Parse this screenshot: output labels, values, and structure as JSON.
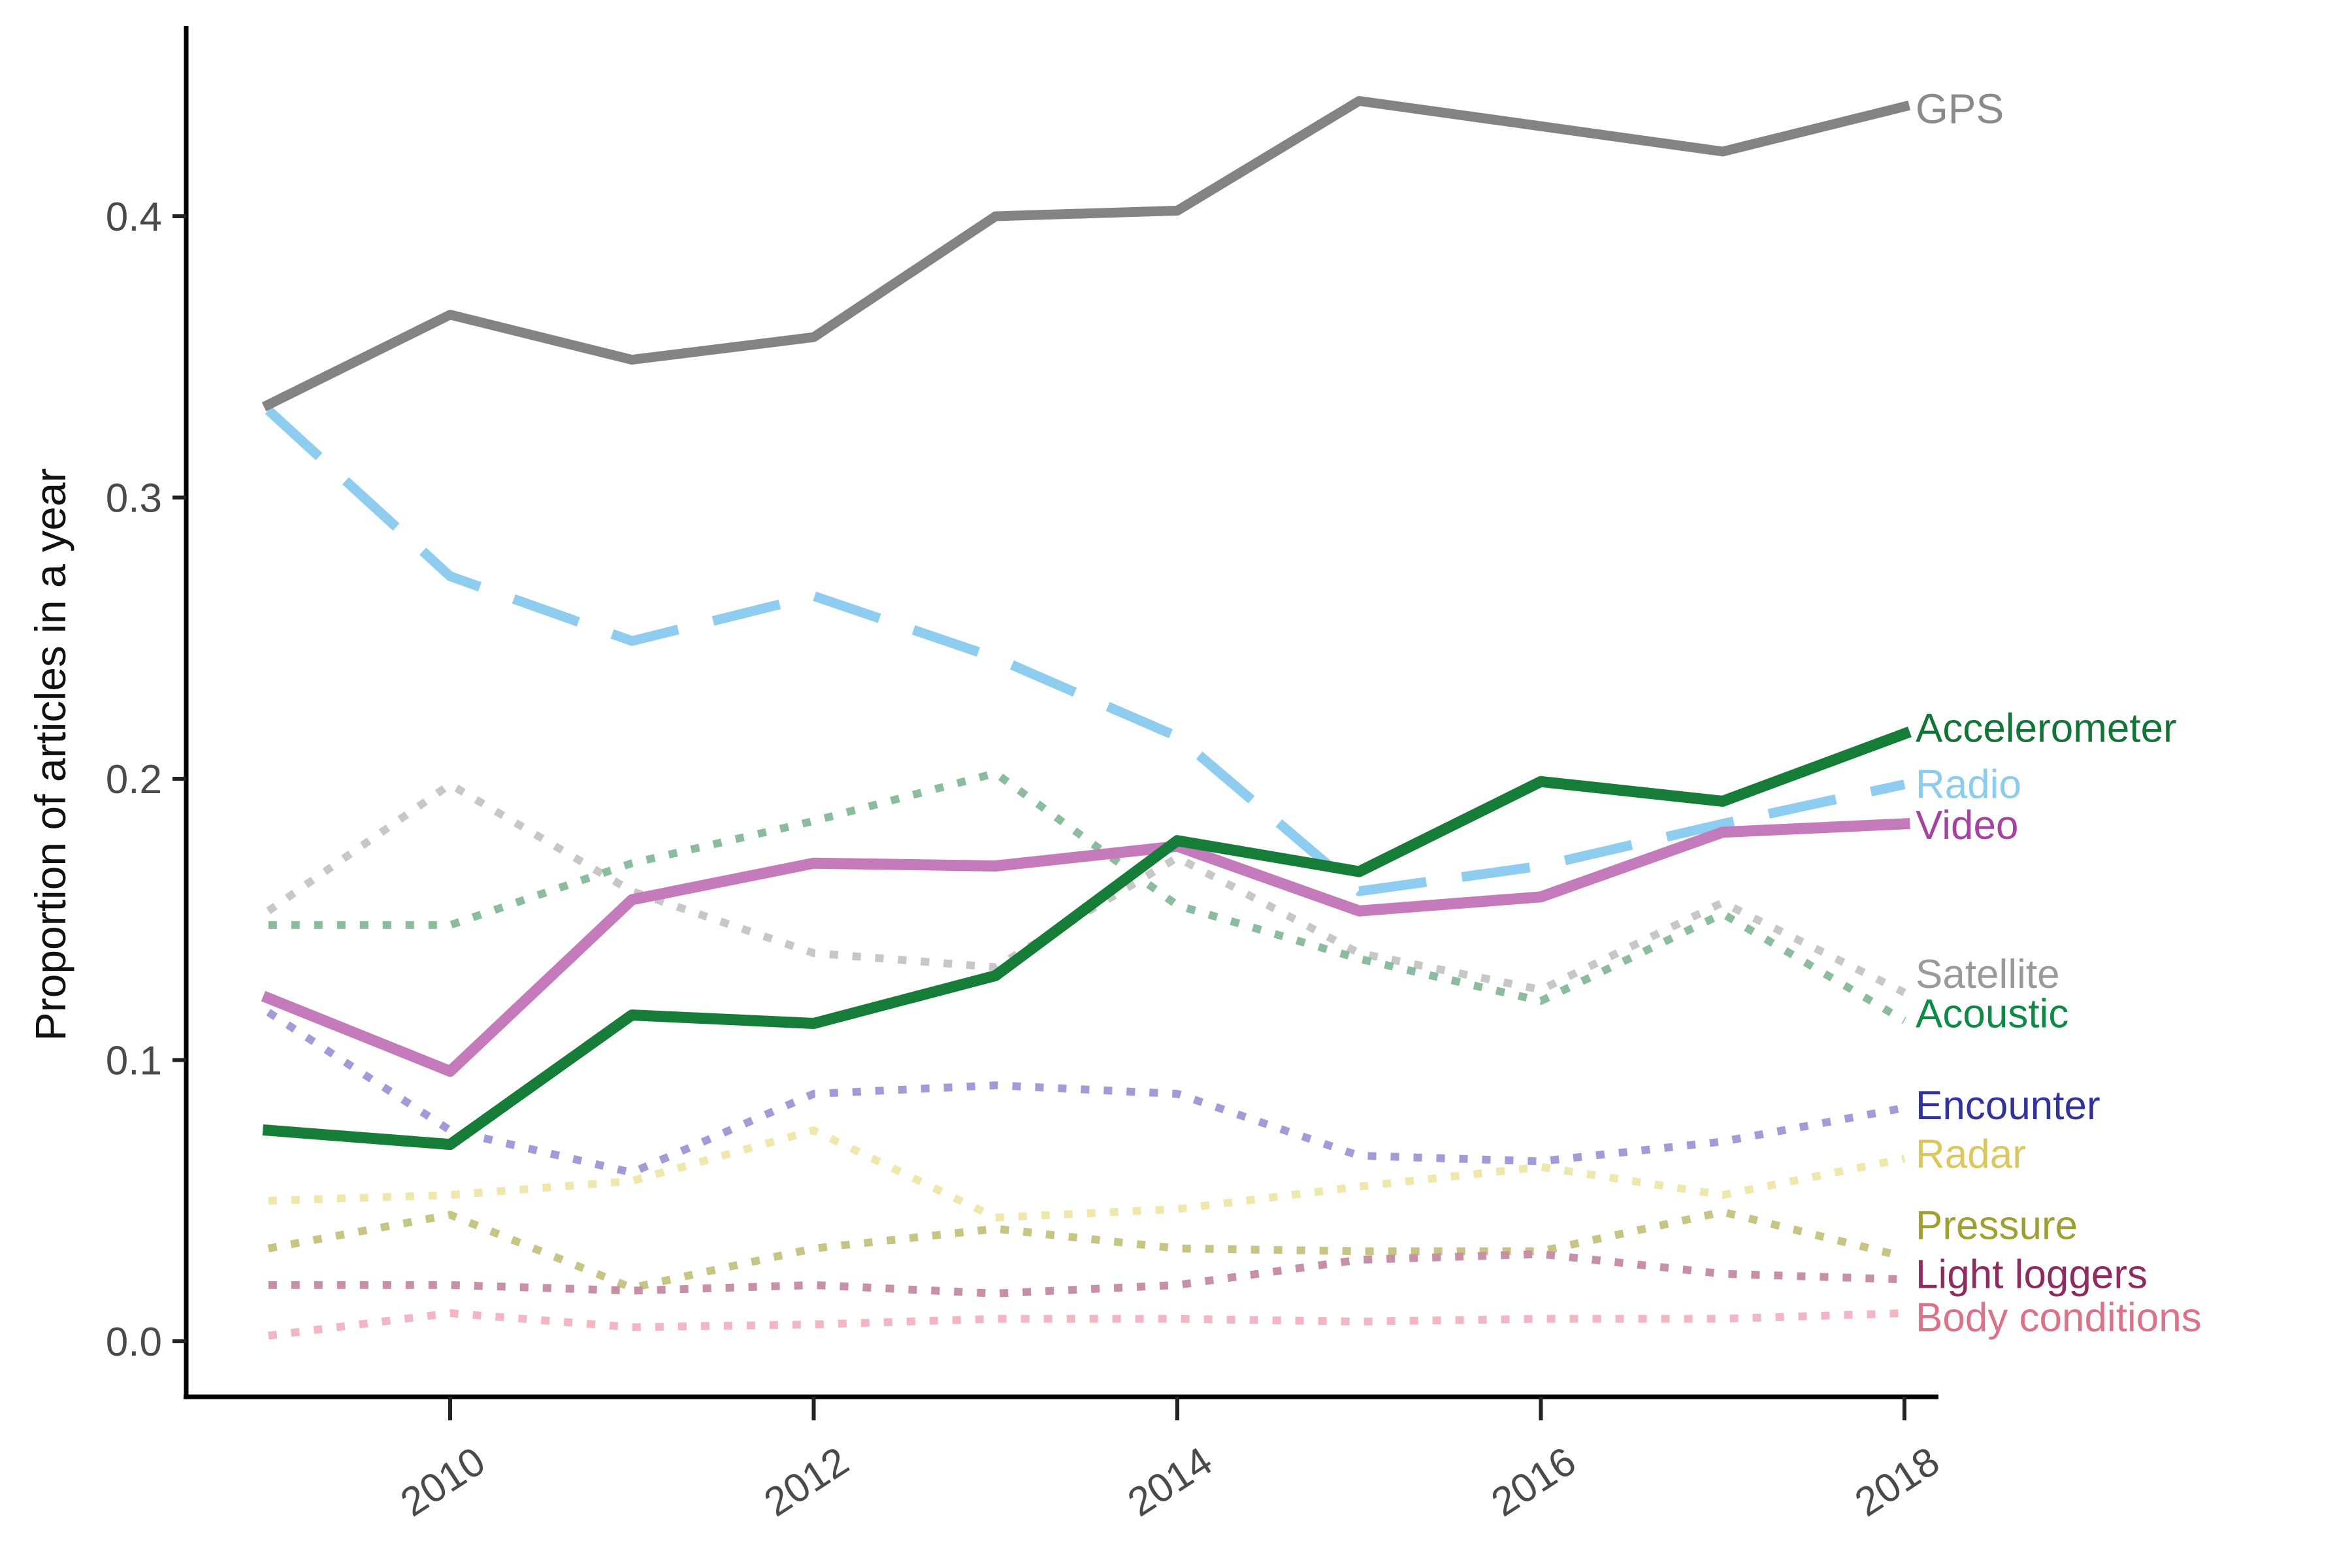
{
  "chart_data": {
    "type": "line",
    "title": "",
    "xlabel": "",
    "ylabel": "Proportion of articles in a year",
    "x": [
      2009,
      2010,
      2011,
      2012,
      2013,
      2014,
      2015,
      2016,
      2017,
      2018
    ],
    "x_tick_labels": [
      "2010",
      "2012",
      "2014",
      "2016",
      "2018"
    ],
    "x_tick_years": [
      2010,
      2012,
      2014,
      2016,
      2018
    ],
    "y_tick_labels": [
      "0.0",
      "0.1",
      "0.2",
      "0.3",
      "0.4"
    ],
    "y_tick_values": [
      0.0,
      0.1,
      0.2,
      0.3,
      0.4
    ],
    "ylim": [
      0.0,
      0.47
    ],
    "grid": false,
    "background": "#ffffff",
    "legend_position": "right-edge-direct-labels",
    "series": [
      {
        "id": "satellite",
        "name": "Satellite",
        "style": "dotted",
        "color": "#c7c7c7",
        "label_color": "#9a9a9a",
        "width": 12,
        "label_at": 0.1305,
        "values": [
          0.153,
          0.198,
          0.16,
          0.138,
          0.133,
          0.172,
          0.138,
          0.125,
          0.156,
          0.124
        ]
      },
      {
        "id": "acoustic",
        "name": "Acoustic",
        "style": "dotted",
        "color": "#8bbc9d",
        "label_color": "#0f8a44",
        "width": 12,
        "label_at": 0.1165,
        "values": [
          0.148,
          0.148,
          0.17,
          0.185,
          0.202,
          0.155,
          0.136,
          0.121,
          0.152,
          0.114
        ]
      },
      {
        "id": "encounter",
        "name": "Encounter",
        "style": "dotted",
        "color": "#a29bd8",
        "label_color": "#32329b",
        "width": 12,
        "label_at": 0.0838,
        "values": [
          0.117,
          0.075,
          0.06,
          0.088,
          0.091,
          0.088,
          0.066,
          0.064,
          0.071,
          0.083
        ]
      },
      {
        "id": "radar",
        "name": "Radar",
        "style": "dotted",
        "color": "#efe7ab",
        "label_color": "#dcc75f",
        "width": 12,
        "label_at": 0.0665,
        "values": [
          0.05,
          0.052,
          0.057,
          0.075,
          0.044,
          0.047,
          0.055,
          0.062,
          0.052,
          0.065
        ]
      },
      {
        "id": "pressure",
        "name": "Pressure",
        "style": "dotted",
        "color": "#c6c584",
        "label_color": "#a0a032",
        "width": 12,
        "label_at": 0.0412,
        "values": [
          0.033,
          0.045,
          0.019,
          0.033,
          0.04,
          0.033,
          0.032,
          0.032,
          0.046,
          0.03
        ]
      },
      {
        "id": "light-loggers",
        "name": "Light loggers",
        "style": "dotted",
        "color": "#c78fa8",
        "label_color": "#8e2c60",
        "width": 12,
        "label_at": 0.0238,
        "values": [
          0.02,
          0.02,
          0.018,
          0.02,
          0.017,
          0.02,
          0.029,
          0.031,
          0.024,
          0.022
        ]
      },
      {
        "id": "body-conditions",
        "name": "Body conditions",
        "style": "dotted",
        "color": "#f3b6c5",
        "label_color": "#dc7288",
        "width": 12,
        "label_at": 0.0085,
        "values": [
          0.002,
          0.01,
          0.005,
          0.006,
          0.008,
          0.008,
          0.007,
          0.008,
          0.008,
          0.01
        ]
      },
      {
        "id": "radio",
        "name": "Radio",
        "style": "dashed",
        "color": "#8ecdef",
        "label_color": "#8bcbec",
        "width": 15,
        "label_at": 0.198,
        "values": [
          0.331,
          0.272,
          0.249,
          0.265,
          0.243,
          0.215,
          0.16,
          0.169,
          0.184,
          0.198
        ]
      },
      {
        "id": "video",
        "name": "Video",
        "style": "solid",
        "color": "#c47abb",
        "label_color": "#a443a0",
        "width": 17,
        "label_at": 0.1835,
        "values": [
          0.122,
          0.096,
          0.157,
          0.17,
          0.169,
          0.176,
          0.153,
          0.158,
          0.181,
          0.184
        ]
      },
      {
        "id": "accelerometer",
        "name": "Accelerometer",
        "style": "solid",
        "color": "#157d37",
        "label_color": "#127436",
        "width": 17,
        "label_at": 0.218,
        "values": [
          0.075,
          0.07,
          0.116,
          0.113,
          0.13,
          0.178,
          0.167,
          0.199,
          0.192,
          0.216
        ]
      },
      {
        "id": "gps",
        "name": "GPS",
        "style": "solid",
        "color": "#838383",
        "label_color": "#8a8a8a",
        "width": 15,
        "label_at": 0.438,
        "values": [
          0.333,
          0.365,
          0.349,
          0.357,
          0.4,
          0.402,
          0.441,
          0.432,
          0.423,
          0.439
        ]
      }
    ]
  }
}
